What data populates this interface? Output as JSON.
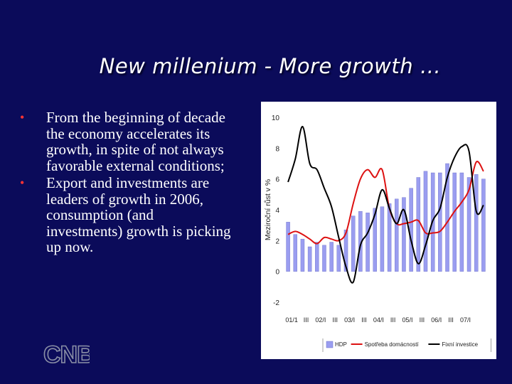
{
  "slide": {
    "title": "New millenium - More growth …",
    "bullets": [
      "From the beginning of decade the economy accelerates its growth, in spite of not always favorable external conditions;",
      "Export and investments are leaders of growth in 2006, consumption (and investments) growth is picking up now."
    ],
    "bullet_marker": "•",
    "logo": {
      "text": "CNB",
      "color": "#8a8fa6"
    }
  },
  "chart_data": {
    "type": "bar",
    "title": "",
    "ylabel": "Meziroční růst v %",
    "xlabel": "",
    "ylim": [
      -2,
      10
    ],
    "yticks": [
      -2,
      0,
      2,
      4,
      6,
      8,
      10
    ],
    "ytick_labels": [
      "-2",
      "0",
      "2",
      "4",
      "6",
      "8",
      "10"
    ],
    "x_tick_labels": [
      "01/1",
      "III",
      "02/I",
      "III",
      "03/I",
      "III",
      "04/I",
      "III",
      "05/I",
      "III",
      "06/I",
      "III",
      "07/I"
    ],
    "grid": false,
    "legend_position": "bottom",
    "series": [
      {
        "name": "HDP",
        "kind": "bar",
        "color": "#9a9df0",
        "values": [
          3.2,
          2.4,
          2.1,
          1.6,
          1.9,
          1.7,
          1.9,
          1.7,
          2.7,
          3.6,
          3.9,
          3.8,
          4.1,
          4.2,
          4.4,
          4.7,
          4.8,
          5.4,
          6.1,
          6.5,
          6.4,
          6.4,
          7.0,
          6.4,
          6.4,
          6.1,
          6.3,
          6.0
        ]
      },
      {
        "name": "Spotřeba domácností",
        "kind": "line",
        "color": "#dd1111",
        "values": [
          2.4,
          2.6,
          2.4,
          2.1,
          1.8,
          2.2,
          2.1,
          2.0,
          2.5,
          4.4,
          6.0,
          6.6,
          6.1,
          6.6,
          4.1,
          3.1,
          3.1,
          3.2,
          3.3,
          2.5,
          2.5,
          2.6,
          3.2,
          3.9,
          4.5,
          5.3,
          7.1,
          6.5
        ]
      },
      {
        "name": "Fixní investice",
        "kind": "line",
        "color": "#000000",
        "values": [
          5.8,
          7.3,
          9.4,
          7.0,
          6.6,
          5.4,
          4.2,
          2.2,
          0.3,
          -0.7,
          1.7,
          2.5,
          3.7,
          5.3,
          4.1,
          3.1,
          4.0,
          2.0,
          0.5,
          1.7,
          3.3,
          4.1,
          6.1,
          7.4,
          8.1,
          7.8,
          3.9,
          4.3
        ]
      }
    ]
  }
}
